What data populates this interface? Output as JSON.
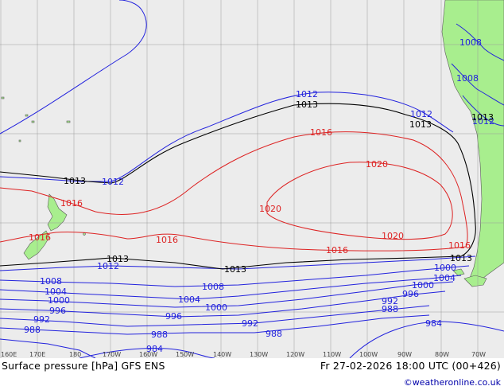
{
  "map": {
    "title": "Surface pressure [hPa] GFS ENS",
    "valid_time": "Fr 27-02-2026 18:00 UTC (00+426)",
    "credit": "©weatheronline.co.uk",
    "colors": {
      "ocean": "#ececec",
      "land": "#a8ee8e",
      "low": "#2222dd",
      "mid": "#000000",
      "high": "#dd2222",
      "grid": "#9a9a9a"
    },
    "lon_labels": [
      "160E",
      "170E",
      "180",
      "170W",
      "160W",
      "150W",
      "140W",
      "130W",
      "120W",
      "110W",
      "100W",
      "90W",
      "80W",
      "70W"
    ],
    "isobar_labels": {
      "l1012a": "1012",
      "l1012b": "1012",
      "l1012c": "1012",
      "l1012d": "1012",
      "l1012e": "1012",
      "l1013a": "1013",
      "l1013b": "1013",
      "l1013c": "1013",
      "l1013d": "1013",
      "l1013e": "1013",
      "l1013f": "1013",
      "l1013g": "1013",
      "l1016a": "1016",
      "l1016b": "1016",
      "l1016c": "1016",
      "l1016d": "1016",
      "l1016e": "1016",
      "l1016f": "1016",
      "l1020a": "1020",
      "l1020b": "1020",
      "l1020c": "1020",
      "l1008a": "1008",
      "l1008b": "1008",
      "l1008c": "1008",
      "l1008d": "1008",
      "l1004a": "1004",
      "l1004b": "1004",
      "l1004c": "1004",
      "l1000a": "1000",
      "l1000b": "1000",
      "l1000c": "1000",
      "l1000d": "1000",
      "l996a": "996",
      "l996b": "996",
      "l996c": "996",
      "l992a": "992",
      "l992b": "992",
      "l992c": "992",
      "l988a": "988",
      "l988b": "988",
      "l988c": "988",
      "l988d": "988",
      "l984a": "984",
      "l984b": "984"
    }
  }
}
